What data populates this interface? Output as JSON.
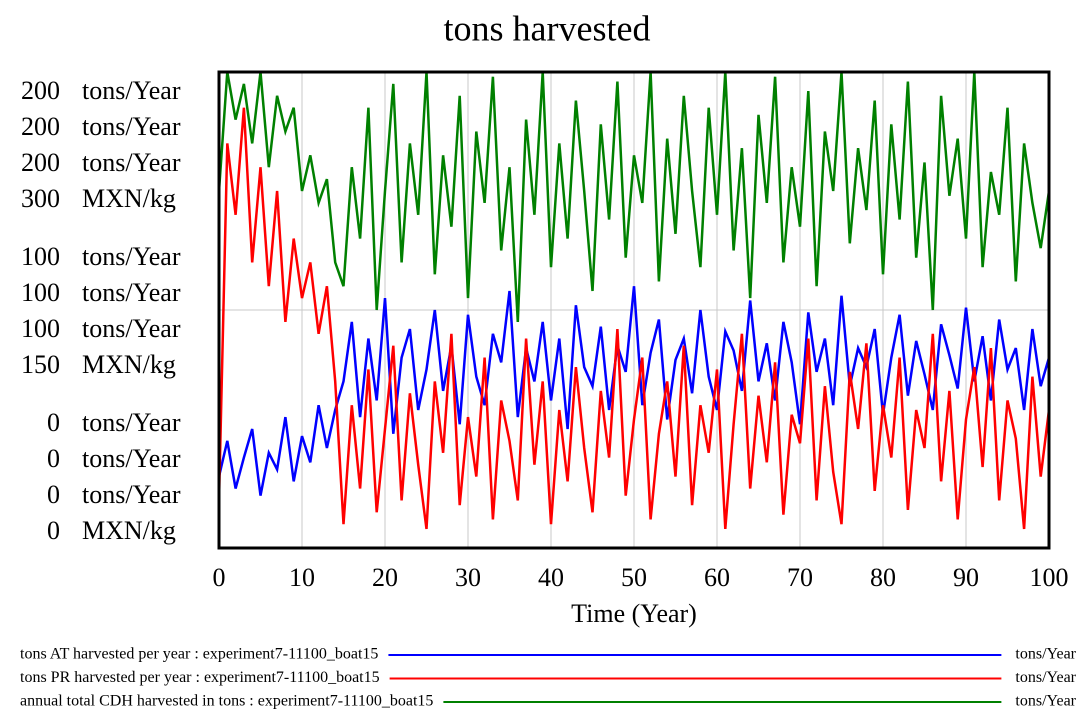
{
  "chart_data": {
    "type": "line",
    "title": "tons harvested",
    "xlabel": "Time (Year)",
    "xlim": [
      0,
      100
    ],
    "xticks": [
      0,
      10,
      20,
      30,
      40,
      50,
      60,
      70,
      80,
      90,
      100
    ],
    "grid": true,
    "axes": [
      {
        "unit": "tons/Year",
        "ylim": [
          0,
          200
        ],
        "yticks": [
          0,
          100,
          200
        ]
      },
      {
        "unit": "tons/Year",
        "ylim": [
          0,
          200
        ],
        "yticks": [
          0,
          100,
          200
        ]
      },
      {
        "unit": "tons/Year",
        "ylim": [
          0,
          200
        ],
        "yticks": [
          0,
          100,
          200
        ]
      },
      {
        "unit": "MXN/kg",
        "ylim": [
          0,
          300
        ],
        "yticks": [
          0,
          150,
          300
        ]
      }
    ],
    "x": [
      0,
      1,
      2,
      3,
      4,
      5,
      6,
      7,
      8,
      9,
      10,
      11,
      12,
      13,
      14,
      15,
      16,
      17,
      18,
      19,
      20,
      21,
      22,
      23,
      24,
      25,
      26,
      27,
      28,
      29,
      30,
      31,
      32,
      33,
      34,
      35,
      36,
      37,
      38,
      39,
      40,
      41,
      42,
      43,
      44,
      45,
      46,
      47,
      48,
      49,
      50,
      51,
      52,
      53,
      54,
      55,
      56,
      57,
      58,
      59,
      60,
      61,
      62,
      63,
      64,
      65,
      66,
      67,
      68,
      69,
      70,
      71,
      72,
      73,
      74,
      75,
      76,
      77,
      78,
      79,
      80,
      81,
      82,
      83,
      84,
      85,
      86,
      87,
      88,
      89,
      90,
      91,
      92,
      93,
      94,
      95,
      96,
      97,
      98,
      99,
      100
    ],
    "series": [
      {
        "name": "tons AT harvested per year : experiment7-11100_boat15",
        "unit": "tons/Year",
        "color": "#0000ff",
        "values": [
          30,
          45,
          25,
          38,
          50,
          22,
          40,
          33,
          55,
          28,
          47,
          36,
          60,
          42,
          58,
          70,
          95,
          55,
          88,
          62,
          105,
          48,
          80,
          92,
          58,
          75,
          100,
          66,
          85,
          52,
          98,
          72,
          60,
          90,
          78,
          108,
          55,
          84,
          70,
          95,
          62,
          88,
          50,
          102,
          76,
          68,
          93,
          58,
          85,
          74,
          110,
          60,
          82,
          96,
          54,
          79,
          88,
          65,
          100,
          72,
          58,
          91,
          83,
          66,
          104,
          70,
          86,
          62,
          95,
          78,
          52,
          99,
          74,
          88,
          60,
          106,
          68,
          84,
          76,
          92,
          56,
          80,
          98,
          64,
          87,
          73,
          58,
          94,
          81,
          67,
          101,
          70,
          89,
          62,
          96,
          75,
          84,
          58,
          92,
          68,
          80
        ]
      },
      {
        "name": "tons PR harvested per year : experiment7-11100_boat15",
        "unit": "tons/Year",
        "color": "#ff0000",
        "values": [
          20,
          170,
          140,
          185,
          120,
          160,
          110,
          150,
          95,
          130,
          105,
          120,
          90,
          110,
          70,
          10,
          60,
          25,
          75,
          15,
          50,
          85,
          20,
          65,
          35,
          8,
          70,
          40,
          90,
          18,
          55,
          30,
          80,
          12,
          62,
          45,
          20,
          88,
          35,
          70,
          10,
          58,
          28,
          76,
          42,
          15,
          66,
          38,
          92,
          22,
          54,
          80,
          12,
          48,
          70,
          30,
          85,
          18,
          60,
          40,
          75,
          8,
          52,
          90,
          25,
          64,
          36,
          78,
          14,
          56,
          44,
          88,
          20,
          68,
          32,
          10,
          74,
          50,
          86,
          24,
          60,
          38,
          80,
          16,
          58,
          42,
          90,
          28,
          66,
          12,
          54,
          76,
          34,
          84,
          20,
          62,
          46,
          8,
          72,
          30,
          58
        ]
      },
      {
        "name": "annual total CDH harvested in tons : experiment7-11100_boat15",
        "unit": "tons/Year",
        "color": "#008000",
        "values": [
          150,
          200,
          180,
          195,
          170,
          200,
          160,
          190,
          175,
          185,
          150,
          165,
          145,
          155,
          120,
          110,
          160,
          130,
          185,
          100,
          150,
          195,
          120,
          170,
          140,
          200,
          115,
          165,
          135,
          190,
          105,
          175,
          145,
          198,
          125,
          160,
          95,
          180,
          140,
          200,
          118,
          170,
          130,
          188,
          150,
          108,
          178,
          138,
          196,
          122,
          165,
          145,
          200,
          112,
          172,
          132,
          190,
          150,
          118,
          185,
          140,
          200,
          125,
          168,
          105,
          182,
          145,
          198,
          120,
          160,
          135,
          192,
          110,
          175,
          150,
          200,
          128,
          168,
          142,
          188,
          115,
          178,
          138,
          196,
          122,
          162,
          100,
          190,
          148,
          172,
          130,
          200,
          118,
          158,
          140,
          185,
          112,
          170,
          145,
          126,
          150
        ]
      }
    ]
  }
}
